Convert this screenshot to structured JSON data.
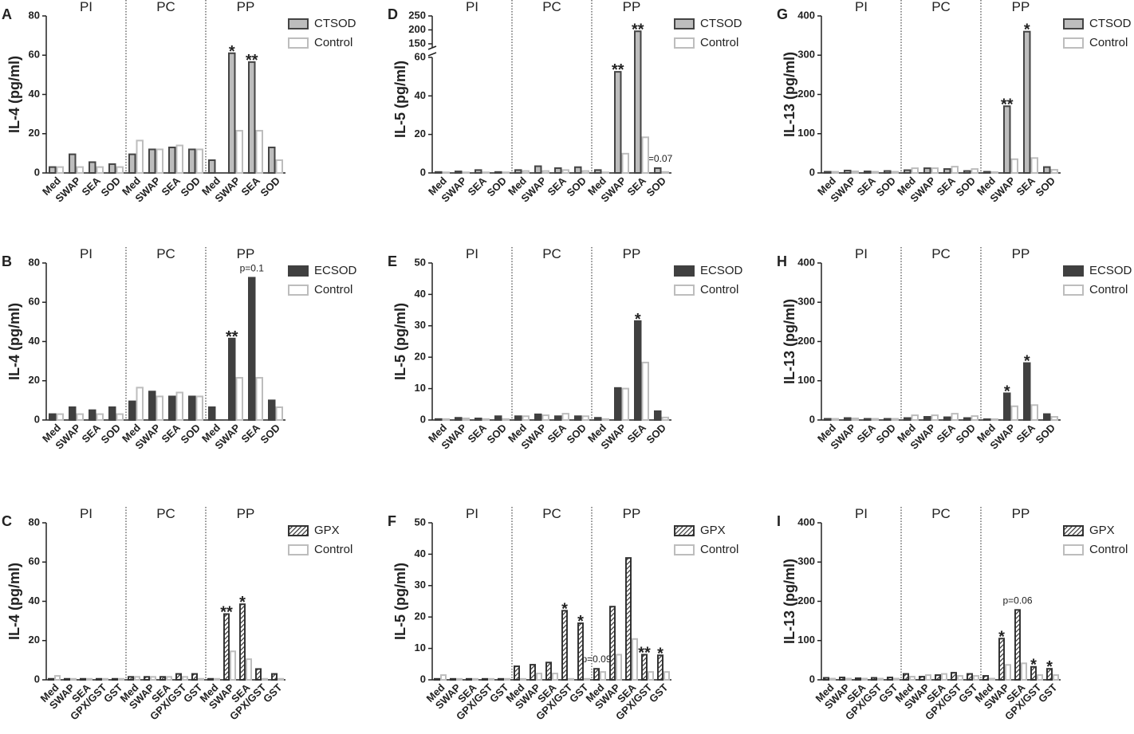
{
  "chart_data": [
    {
      "type": "bar",
      "panel": "A",
      "ylabel": "IL-4 (pg/ml)",
      "groups": [
        "PI",
        "PC",
        "PP"
      ],
      "categories": [
        "Med",
        "SWAP",
        "SEA",
        "SOD",
        "Med",
        "SWAP",
        "SEA",
        "SOD",
        "Med",
        "SWAP",
        "SEA",
        "SOD"
      ],
      "ylim": [
        0,
        80
      ],
      "yticks": [
        0,
        20,
        40,
        60,
        80
      ],
      "series": [
        {
          "name": "CTSOD",
          "color": "#bdbdbd",
          "edge": "#444444",
          "values": [
            3,
            9.5,
            5.5,
            4.5,
            9.5,
            12,
            13,
            12,
            6.5,
            61,
            56.5,
            13
          ],
          "annotations": [
            null,
            null,
            null,
            null,
            null,
            null,
            null,
            null,
            null,
            "*",
            "**",
            null
          ]
        },
        {
          "name": "Control",
          "color": "#ffffff",
          "edge": "#bdbdbd",
          "values": [
            3,
            3,
            3,
            3,
            16.5,
            12,
            14,
            12,
            0,
            21.5,
            21.5,
            6.5
          ]
        }
      ]
    },
    {
      "type": "bar",
      "panel": "B",
      "ylabel": "IL-4 (pg/ml)",
      "groups": [
        "PI",
        "PC",
        "PP"
      ],
      "categories": [
        "Med",
        "SWAP",
        "SEA",
        "SOD",
        "Med",
        "SWAP",
        "SEA",
        "SOD",
        "Med",
        "SWAP",
        "SEA",
        "SOD"
      ],
      "ylim": [
        0,
        80
      ],
      "yticks": [
        0,
        20,
        40,
        60,
        80
      ],
      "series": [
        {
          "name": "ECSOD",
          "color": "#404040",
          "edge": "#404040",
          "values": [
            3,
            6.5,
            5,
            6.5,
            9.5,
            14.5,
            12,
            12,
            6.5,
            41.5,
            72.5,
            10
          ],
          "annotations": [
            null,
            null,
            null,
            null,
            null,
            null,
            null,
            null,
            null,
            "**",
            "p=0.1",
            null
          ]
        },
        {
          "name": "Control",
          "color": "#ffffff",
          "edge": "#bdbdbd",
          "values": [
            3,
            3,
            3,
            3,
            16.5,
            12,
            14,
            12,
            0,
            21.5,
            21.5,
            6.5
          ]
        }
      ]
    },
    {
      "type": "bar",
      "panel": "C",
      "ylabel": "IL-4 (pg/ml)",
      "groups": [
        "PI",
        "PC",
        "PP"
      ],
      "categories": [
        "Med",
        "SWAP",
        "SEA",
        "GPX/GST",
        "GST",
        "Med",
        "SWAP",
        "SEA",
        "GPX/GST",
        "GST",
        "Med",
        "SWAP",
        "SEA",
        "GPX/GST",
        "GST"
      ],
      "ylim": [
        0,
        80
      ],
      "yticks": [
        0,
        20,
        40,
        60,
        80
      ],
      "series": [
        {
          "name": "GPX",
          "color": "#333333",
          "edge": "#333333",
          "pattern": "hatch",
          "values": [
            0.5,
            0.5,
            0.5,
            0.5,
            0.5,
            1.5,
            1.5,
            1.5,
            3,
            3,
            0.5,
            33.5,
            38.5,
            5.5,
            3
          ],
          "annotations": [
            null,
            null,
            null,
            null,
            null,
            null,
            null,
            null,
            null,
            null,
            null,
            "**",
            "*",
            null,
            null
          ]
        },
        {
          "name": "Control",
          "color": "#ffffff",
          "edge": "#bdbdbd",
          "values": [
            2,
            0.5,
            0.5,
            0.5,
            0.5,
            1.5,
            1.5,
            1.5,
            1.5,
            0.5,
            0.5,
            14.5,
            10.5,
            0.5,
            0.5
          ]
        }
      ]
    },
    {
      "type": "bar",
      "panel": "D",
      "ylabel": "IL-5 (pg/ml)",
      "groups": [
        "PI",
        "PC",
        "PP"
      ],
      "categories": [
        "Med",
        "SWAP",
        "SEA",
        "SOD",
        "Med",
        "SWAP",
        "SEA",
        "SOD",
        "Med",
        "SWAP",
        "SEA",
        "SOD"
      ],
      "ylim": [
        0,
        60
      ],
      "yticks": [
        0,
        20,
        40,
        60
      ],
      "y_break": {
        "ylim": [
          150,
          250
        ],
        "yticks": [
          150,
          200,
          250
        ]
      },
      "series": [
        {
          "name": "CTSOD",
          "color": "#bdbdbd",
          "edge": "#444444",
          "values": [
            0.5,
            0.8,
            1.5,
            0.5,
            1.5,
            3.5,
            2.5,
            3,
            1.5,
            52.5,
            195,
            2.5
          ],
          "annotations": [
            null,
            null,
            null,
            null,
            null,
            null,
            null,
            null,
            null,
            "**",
            "**",
            "p=0.07"
          ]
        },
        {
          "name": "Control",
          "color": "#ffffff",
          "edge": "#bdbdbd",
          "values": [
            0.3,
            0.3,
            0.3,
            0.3,
            1,
            1,
            1.5,
            1,
            0.3,
            10,
            18.5,
            0.5
          ]
        }
      ]
    },
    {
      "type": "bar",
      "panel": "E",
      "ylabel": "IL-5 (pg/ml)",
      "groups": [
        "PI",
        "PC",
        "PP"
      ],
      "categories": [
        "Med",
        "SWAP",
        "SEA",
        "SOD",
        "Med",
        "SWAP",
        "SEA",
        "SOD",
        "Med",
        "SWAP",
        "SEA",
        "SOD"
      ],
      "ylim": [
        0,
        50
      ],
      "yticks": [
        0,
        10,
        20,
        30,
        40,
        50
      ],
      "series": [
        {
          "name": "ECSOD",
          "color": "#404040",
          "edge": "#404040",
          "values": [
            0.3,
            0.7,
            0.5,
            1.2,
            1.2,
            1.8,
            1.2,
            1.2,
            0.7,
            10.2,
            31.5,
            2.8
          ],
          "annotations": [
            null,
            null,
            null,
            null,
            null,
            null,
            null,
            null,
            null,
            null,
            "*",
            null
          ]
        },
        {
          "name": "Control",
          "color": "#ffffff",
          "edge": "#bdbdbd",
          "values": [
            0.3,
            0.5,
            0.3,
            0.3,
            1.2,
            1.5,
            2,
            1.2,
            0.3,
            10,
            18.3,
            0.8
          ]
        }
      ]
    },
    {
      "type": "bar",
      "panel": "F",
      "ylabel": "IL-5 (pg/ml)",
      "groups": [
        "PI",
        "PC",
        "PP"
      ],
      "categories": [
        "Med",
        "SWAP",
        "SEA",
        "GPX/GST",
        "GST",
        "Med",
        "SWAP",
        "SEA",
        "GPX/GST",
        "GST",
        "Med",
        "SWAP",
        "SEA",
        "GPX/GST",
        "GST"
      ],
      "ylim": [
        0,
        50
      ],
      "yticks": [
        0,
        10,
        20,
        30,
        40,
        50
      ],
      "series": [
        {
          "name": "GPX",
          "color": "#333333",
          "edge": "#333333",
          "pattern": "hatch",
          "values": [
            0.3,
            0.3,
            0.3,
            0.3,
            0.3,
            4.3,
            4.8,
            5.5,
            22,
            18,
            3.5,
            23.3,
            38.8,
            8,
            7.8
          ],
          "annotations": [
            null,
            null,
            null,
            null,
            null,
            null,
            null,
            null,
            "*",
            "*",
            "p=0.09",
            null,
            null,
            "**",
            "*"
          ]
        },
        {
          "name": "Control",
          "color": "#ffffff",
          "edge": "#bdbdbd",
          "values": [
            1.5,
            0.3,
            0.3,
            0.3,
            0.3,
            0.3,
            2,
            2,
            0.3,
            0.3,
            2.5,
            8,
            13,
            2.5,
            2.5
          ]
        }
      ]
    },
    {
      "type": "bar",
      "panel": "G",
      "ylabel": "IL-13 (pg/ml)",
      "groups": [
        "PI",
        "PC",
        "PP"
      ],
      "categories": [
        "Med",
        "SWAP",
        "SEA",
        "SOD",
        "Med",
        "SWAP",
        "SEA",
        "SOD",
        "Med",
        "SWAP",
        "SEA",
        "SOD"
      ],
      "ylim": [
        0,
        400
      ],
      "yticks": [
        0,
        100,
        200,
        300,
        400
      ],
      "series": [
        {
          "name": "CTSOD",
          "color": "#bdbdbd",
          "edge": "#444444",
          "values": [
            3,
            6,
            4,
            5,
            7,
            12,
            10,
            5,
            3,
            170,
            360,
            15
          ],
          "annotations": [
            null,
            null,
            null,
            null,
            null,
            null,
            null,
            null,
            null,
            "**",
            "*",
            null
          ]
        },
        {
          "name": "Control",
          "color": "#ffffff",
          "edge": "#bdbdbd",
          "values": [
            3,
            4,
            3,
            3,
            12,
            12,
            16,
            10,
            2,
            35,
            38,
            8
          ]
        }
      ]
    },
    {
      "type": "bar",
      "panel": "H",
      "ylabel": "IL-13 (pg/ml)",
      "groups": [
        "PI",
        "PC",
        "PP"
      ],
      "categories": [
        "Med",
        "SWAP",
        "SEA",
        "SOD",
        "Med",
        "SWAP",
        "SEA",
        "SOD",
        "Med",
        "SWAP",
        "SEA",
        "SOD"
      ],
      "ylim": [
        0,
        400
      ],
      "yticks": [
        0,
        100,
        200,
        300,
        400
      ],
      "series": [
        {
          "name": "ECSOD",
          "color": "#404040",
          "edge": "#404040",
          "values": [
            3,
            5,
            3,
            3,
            5,
            8,
            7,
            5,
            2,
            68,
            145,
            15
          ],
          "annotations": [
            null,
            null,
            null,
            null,
            null,
            null,
            null,
            null,
            null,
            "*",
            "*",
            null
          ]
        },
        {
          "name": "Control",
          "color": "#ffffff",
          "edge": "#bdbdbd",
          "values": [
            3,
            4,
            3,
            3,
            12,
            12,
            16,
            10,
            2,
            35,
            38,
            8
          ]
        }
      ]
    },
    {
      "type": "bar",
      "panel": "I",
      "ylabel": "IL-13 (pg/ml)",
      "groups": [
        "PI",
        "PC",
        "PP"
      ],
      "categories": [
        "Med",
        "SWAP",
        "SEA",
        "GPX/GST",
        "GST",
        "Med",
        "SWAP",
        "SEA",
        "GPX/GST",
        "GST",
        "Med",
        "SWAP",
        "SEA",
        "GPX/GST",
        "GST"
      ],
      "ylim": [
        0,
        400
      ],
      "yticks": [
        0,
        100,
        200,
        300,
        400
      ],
      "series": [
        {
          "name": "GPX",
          "color": "#333333",
          "edge": "#333333",
          "pattern": "hatch",
          "values": [
            5,
            6,
            4,
            5,
            6,
            15,
            8,
            12,
            18,
            15,
            10,
            105,
            178,
            33,
            28
          ],
          "annotations": [
            null,
            null,
            null,
            null,
            null,
            null,
            null,
            null,
            null,
            null,
            null,
            "*",
            "p=0.06",
            "*",
            "*"
          ]
        },
        {
          "name": "Control",
          "color": "#ffffff",
          "edge": "#bdbdbd",
          "values": [
            3,
            3,
            3,
            3,
            3,
            8,
            12,
            15,
            10,
            10,
            3,
            38,
            42,
            12,
            12
          ]
        }
      ]
    }
  ]
}
